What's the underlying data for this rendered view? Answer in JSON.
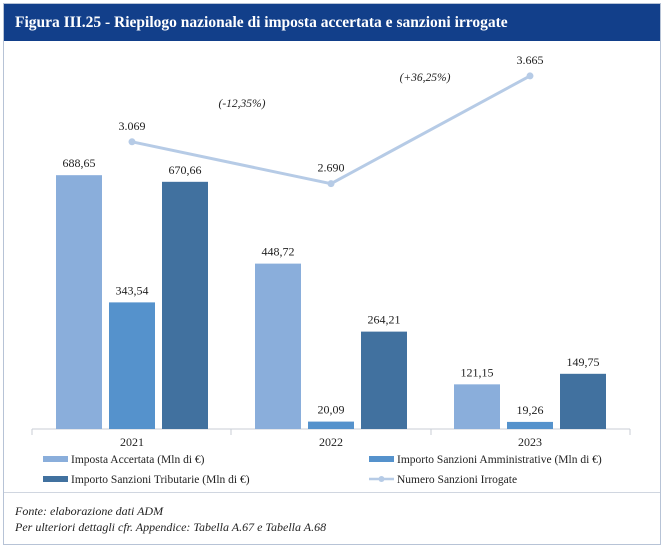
{
  "figure": {
    "title": "Figura III.25 - Riepilogo nazionale di imposta accertata e sanzioni irrogate"
  },
  "chart_data": {
    "type": "bar",
    "categories": [
      "2021",
      "2022",
      "2023"
    ],
    "series": [
      {
        "name": "Imposta Accertata (Mln di €)",
        "values": [
          688.65,
          448.72,
          121.15
        ],
        "labels": [
          "688,65",
          "448,72",
          "121,15"
        ],
        "color": "#8aaedb"
      },
      {
        "name": "Importo Sanzioni Amministrative (Mln di €)",
        "values": [
          343.54,
          20.09,
          19.26
        ],
        "labels": [
          "343,54",
          "20,09",
          "19,26"
        ],
        "color": "#5592cc"
      },
      {
        "name": "Importo Sanzioni Tributarie (Mln di €)",
        "values": [
          670.66,
          264.21,
          149.75
        ],
        "labels": [
          "670,66",
          "264,21",
          "149,75"
        ],
        "color": "#41719f"
      }
    ],
    "ylim": [
      0,
      700
    ],
    "line_series": {
      "name": "Numero Sanzioni Irrogate",
      "type": "line",
      "values": [
        3069,
        2690,
        3665
      ],
      "labels": [
        "3.069",
        "2.690",
        "3.665"
      ],
      "color": "#b6cbe6",
      "ylim": [
        1900,
        3800
      ]
    },
    "annotations": [
      "(-12,35%)",
      "(+36,25%)"
    ],
    "legend": "bottom"
  },
  "source": {
    "line1": "Fonte: elaborazione dati ADM",
    "line2": "Per ulteriori dettagli cfr. Appendice: Tabella A.67 e Tabella A.68"
  }
}
